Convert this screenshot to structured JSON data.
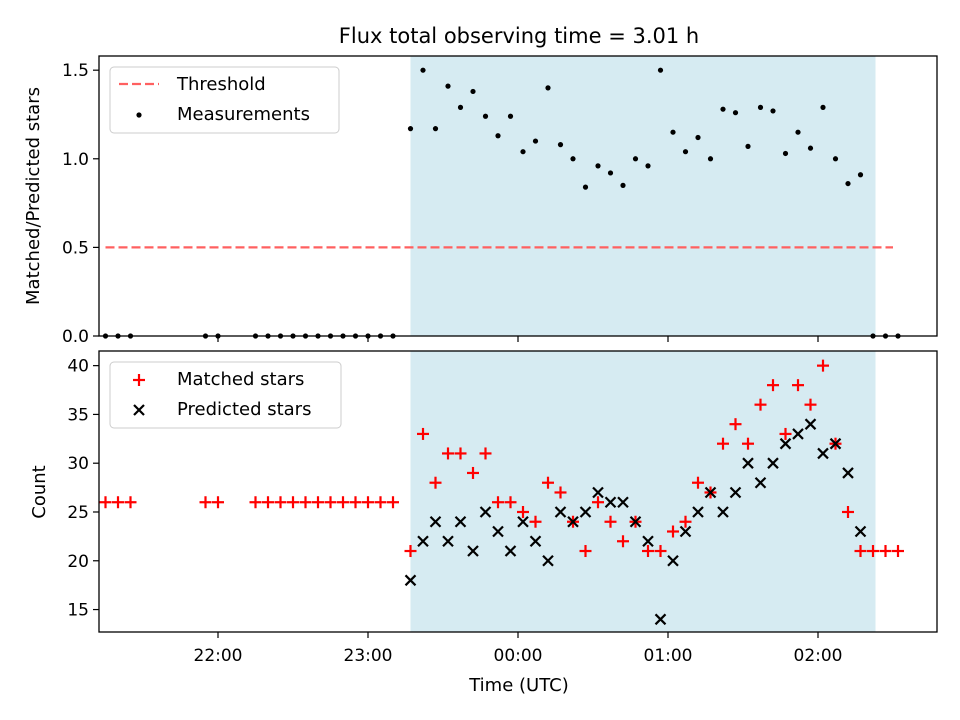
{
  "title": "Flux total observing time = 3.01 h",
  "xlabel": "Time (UTC)",
  "x_ticks": [
    "22:00",
    "23:00",
    "00:00",
    "01:00",
    "02:00"
  ],
  "observing_window": {
    "start": "23:17",
    "end": "02:23",
    "color": "#add8e6"
  },
  "chart_data": [
    {
      "type": "scatter",
      "ylabel": "Matched/Predicted stars",
      "ylim": [
        0,
        1.58
      ],
      "y_ticks": [
        "0.0",
        "0.5",
        "1.0",
        "1.5"
      ],
      "legend": {
        "placement": "upper-left",
        "entries": [
          "Threshold",
          "Measurements"
        ]
      },
      "threshold": {
        "name": "Threshold",
        "value": 0.5,
        "x_range": [
          "21:15",
          "02:30"
        ],
        "color": "#ff6060",
        "style": "dashed"
      },
      "series": [
        {
          "name": "Measurements",
          "color": "#000000",
          "marker": "dot",
          "x": [
            "21:15",
            "21:20",
            "21:25",
            "21:55",
            "22:00",
            "22:15",
            "22:20",
            "22:25",
            "22:30",
            "22:35",
            "22:40",
            "22:45",
            "22:50",
            "22:55",
            "23:00",
            "23:05",
            "23:10",
            "23:17",
            "23:22",
            "23:27",
            "23:32",
            "23:37",
            "23:42",
            "23:47",
            "23:52",
            "23:57",
            "00:02",
            "00:07",
            "00:12",
            "00:17",
            "00:22",
            "00:27",
            "00:32",
            "00:37",
            "00:42",
            "00:47",
            "00:52",
            "00:57",
            "01:02",
            "01:07",
            "01:12",
            "01:17",
            "01:22",
            "01:27",
            "01:32",
            "01:37",
            "01:42",
            "01:47",
            "01:52",
            "01:57",
            "02:02",
            "02:07",
            "02:12",
            "02:17",
            "02:22",
            "02:27",
            "02:32"
          ],
          "values": [
            0,
            0,
            0,
            0,
            0,
            0,
            0,
            0,
            0,
            0,
            0,
            0,
            0,
            0,
            0,
            0,
            0,
            1.17,
            1.5,
            1.17,
            1.41,
            1.29,
            1.38,
            1.24,
            1.13,
            1.24,
            1.04,
            1.1,
            1.4,
            1.08,
            1.0,
            0.84,
            0.96,
            0.92,
            0.85,
            1.0,
            0.96,
            1.5,
            1.15,
            1.04,
            1.12,
            1.0,
            1.28,
            1.26,
            1.07,
            1.29,
            1.27,
            1.03,
            1.15,
            1.06,
            1.29,
            1.0,
            0.86,
            0.91,
            0,
            0,
            0
          ]
        }
      ]
    },
    {
      "type": "scatter",
      "ylabel": "Count",
      "ylim": [
        12.7,
        41.5
      ],
      "y_ticks": [
        "15",
        "20",
        "25",
        "30",
        "35",
        "40"
      ],
      "legend": {
        "placement": "upper-left",
        "entries": [
          "Matched stars",
          "Predicted stars"
        ]
      },
      "series": [
        {
          "name": "Matched stars",
          "color": "#ff0000",
          "marker": "plus",
          "x": [
            "21:15",
            "21:20",
            "21:25",
            "21:55",
            "22:00",
            "22:15",
            "22:20",
            "22:25",
            "22:30",
            "22:35",
            "22:40",
            "22:45",
            "22:50",
            "22:55",
            "23:00",
            "23:05",
            "23:10",
            "23:17",
            "23:22",
            "23:27",
            "23:32",
            "23:37",
            "23:42",
            "23:47",
            "23:52",
            "23:57",
            "00:02",
            "00:07",
            "00:12",
            "00:17",
            "00:22",
            "00:27",
            "00:32",
            "00:37",
            "00:42",
            "00:47",
            "00:52",
            "00:57",
            "01:02",
            "01:07",
            "01:12",
            "01:17",
            "01:22",
            "01:27",
            "01:32",
            "01:37",
            "01:42",
            "01:47",
            "01:52",
            "01:57",
            "02:02",
            "02:07",
            "02:12",
            "02:17",
            "02:22",
            "02:27",
            "02:32"
          ],
          "values": [
            26,
            26,
            26,
            26,
            26,
            26,
            26,
            26,
            26,
            26,
            26,
            26,
            26,
            26,
            26,
            26,
            26,
            21,
            33,
            28,
            31,
            31,
            29,
            31,
            26,
            26,
            25,
            24,
            28,
            27,
            24,
            21,
            26,
            24,
            22,
            24,
            21,
            21,
            23,
            24,
            28,
            27,
            32,
            34,
            32,
            36,
            38,
            33,
            38,
            36,
            40,
            32,
            25,
            21,
            21,
            21,
            21
          ]
        },
        {
          "name": "Predicted stars",
          "color": "#000000",
          "marker": "x",
          "x": [
            "23:17",
            "23:22",
            "23:27",
            "23:32",
            "23:37",
            "23:42",
            "23:47",
            "23:52",
            "23:57",
            "00:02",
            "00:07",
            "00:12",
            "00:17",
            "00:22",
            "00:27",
            "00:32",
            "00:37",
            "00:42",
            "00:47",
            "00:52",
            "00:57",
            "01:02",
            "01:07",
            "01:12",
            "01:17",
            "01:22",
            "01:27",
            "01:32",
            "01:37",
            "01:42",
            "01:47",
            "01:52",
            "01:57",
            "02:02",
            "02:07",
            "02:12",
            "02:17"
          ],
          "values": [
            18,
            22,
            24,
            22,
            24,
            21,
            25,
            23,
            21,
            24,
            22,
            20,
            25,
            24,
            25,
            27,
            26,
            26,
            24,
            22,
            14,
            20,
            23,
            25,
            27,
            25,
            27,
            30,
            28,
            30,
            32,
            33,
            34,
            31,
            32,
            29,
            23
          ]
        }
      ]
    }
  ]
}
